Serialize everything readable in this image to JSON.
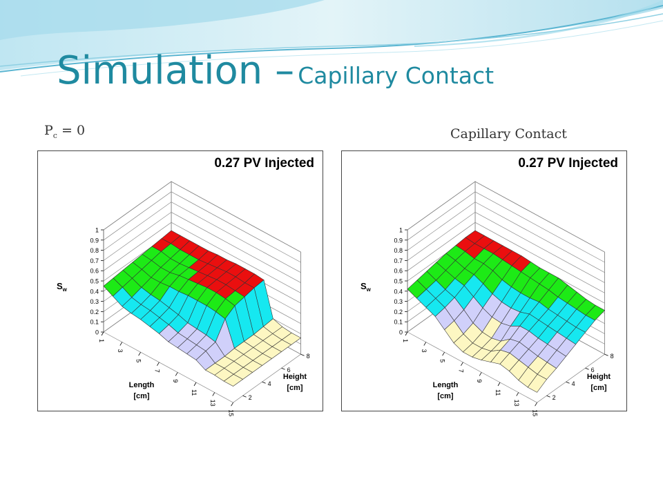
{
  "slide": {
    "title_main": "Simulation –",
    "title_sub": "Capillary Contact",
    "label_left_prefix": "P",
    "label_left_sub": "c",
    "label_left_suffix": " = 0",
    "label_right": "Capillary Contact"
  },
  "colors": {
    "title": "#1f8aa0",
    "bands": [
      "#fdf7c2",
      "#d0d0fa",
      "#16e8f0",
      "#1dea16",
      "#ea0f0f"
    ]
  },
  "chart_data": [
    {
      "type": "surface",
      "title": "0.27 PV Injected",
      "xlabel": "Length [cm]",
      "ylabel": "Height [cm]",
      "zlabel": "Sw",
      "x_ticks": [
        "1",
        "3",
        "5",
        "7",
        "9",
        "11",
        "13",
        "15"
      ],
      "y_ticks": [
        "2",
        "4",
        "6",
        "8"
      ],
      "z_ticks": [
        "0",
        "0.1",
        "0.2",
        "0.3",
        "0.4",
        "0.5",
        "0.6",
        "0.7",
        "0.8",
        "0.9",
        "1"
      ],
      "zlim": [
        0,
        1
      ],
      "length": [
        1,
        2,
        3,
        4,
        5,
        6,
        7,
        8,
        9,
        10,
        11,
        12,
        13,
        14,
        15
      ],
      "height": [
        1,
        2,
        3,
        4,
        5,
        6,
        7,
        8
      ],
      "sw": [
        [
          0.45,
          0.4,
          0.35,
          0.33,
          0.32,
          0.3,
          0.28,
          0.25,
          0.24,
          0.23,
          0.22,
          0.17,
          0.17,
          0.16,
          0.16
        ],
        [
          0.46,
          0.42,
          0.37,
          0.35,
          0.34,
          0.32,
          0.3,
          0.27,
          0.26,
          0.25,
          0.24,
          0.17,
          0.17,
          0.16,
          0.16
        ],
        [
          0.47,
          0.44,
          0.4,
          0.38,
          0.37,
          0.35,
          0.33,
          0.3,
          0.29,
          0.28,
          0.26,
          0.17,
          0.17,
          0.16,
          0.16
        ],
        [
          0.48,
          0.46,
          0.43,
          0.43,
          0.44,
          0.44,
          0.45,
          0.45,
          0.45,
          0.44,
          0.42,
          0.18,
          0.17,
          0.16,
          0.16
        ],
        [
          0.49,
          0.48,
          0.46,
          0.46,
          0.48,
          0.49,
          0.5,
          0.51,
          0.51,
          0.5,
          0.48,
          0.18,
          0.17,
          0.16,
          0.16
        ],
        [
          0.5,
          0.5,
          0.48,
          0.48,
          0.49,
          0.5,
          0.51,
          0.52,
          0.52,
          0.51,
          0.5,
          0.18,
          0.17,
          0.16,
          0.16
        ],
        [
          0.51,
          0.51,
          0.5,
          0.5,
          0.5,
          0.51,
          0.52,
          0.53,
          0.53,
          0.52,
          0.52,
          0.19,
          0.17,
          0.16,
          0.16
        ],
        [
          0.52,
          0.52,
          0.52,
          0.52,
          0.52,
          0.53,
          0.53,
          0.54,
          0.54,
          0.54,
          0.53,
          0.2,
          0.17,
          0.16,
          0.16
        ]
      ]
    },
    {
      "type": "surface",
      "title": "0.27 PV Injected",
      "xlabel": "Length [cm]",
      "ylabel": "Height [cm]",
      "zlabel": "Sw",
      "x_ticks": [
        "1",
        "3",
        "5",
        "7",
        "9",
        "11",
        "13",
        "15"
      ],
      "y_ticks": [
        "2",
        "4",
        "6",
        "8"
      ],
      "z_ticks": [
        "0",
        "0.1",
        "0.2",
        "0.3",
        "0.4",
        "0.5",
        "0.6",
        "0.7",
        "0.8",
        "0.9",
        "1"
      ],
      "zlim": [
        0,
        1
      ],
      "length": [
        1,
        2,
        3,
        4,
        5,
        6,
        7,
        8,
        9,
        10,
        11,
        12,
        13,
        14,
        15
      ],
      "height": [
        1,
        2,
        3,
        4,
        5,
        6,
        7,
        8
      ],
      "sw": [
        [
          0.42,
          0.38,
          0.34,
          0.3,
          0.22,
          0.14,
          0.1,
          0.1,
          0.12,
          0.15,
          0.18,
          0.16,
          0.12,
          0.1,
          0.1
        ],
        [
          0.44,
          0.4,
          0.36,
          0.32,
          0.24,
          0.16,
          0.12,
          0.12,
          0.14,
          0.2,
          0.22,
          0.2,
          0.18,
          0.16,
          0.16
        ],
        [
          0.46,
          0.42,
          0.38,
          0.35,
          0.28,
          0.2,
          0.16,
          0.15,
          0.17,
          0.24,
          0.26,
          0.24,
          0.22,
          0.21,
          0.2
        ],
        [
          0.48,
          0.45,
          0.42,
          0.4,
          0.34,
          0.28,
          0.24,
          0.23,
          0.25,
          0.3,
          0.3,
          0.28,
          0.27,
          0.26,
          0.25
        ],
        [
          0.5,
          0.48,
          0.45,
          0.44,
          0.4,
          0.35,
          0.32,
          0.31,
          0.32,
          0.35,
          0.34,
          0.33,
          0.32,
          0.31,
          0.3
        ],
        [
          0.51,
          0.5,
          0.48,
          0.48,
          0.46,
          0.42,
          0.4,
          0.39,
          0.39,
          0.4,
          0.38,
          0.37,
          0.36,
          0.35,
          0.35
        ],
        [
          0.52,
          0.51,
          0.51,
          0.51,
          0.5,
          0.49,
          0.48,
          0.47,
          0.46,
          0.45,
          0.43,
          0.42,
          0.41,
          0.4,
          0.4
        ],
        [
          0.52,
          0.52,
          0.52,
          0.52,
          0.52,
          0.52,
          0.51,
          0.5,
          0.5,
          0.5,
          0.48,
          0.46,
          0.44,
          0.43,
          0.43
        ]
      ]
    }
  ]
}
